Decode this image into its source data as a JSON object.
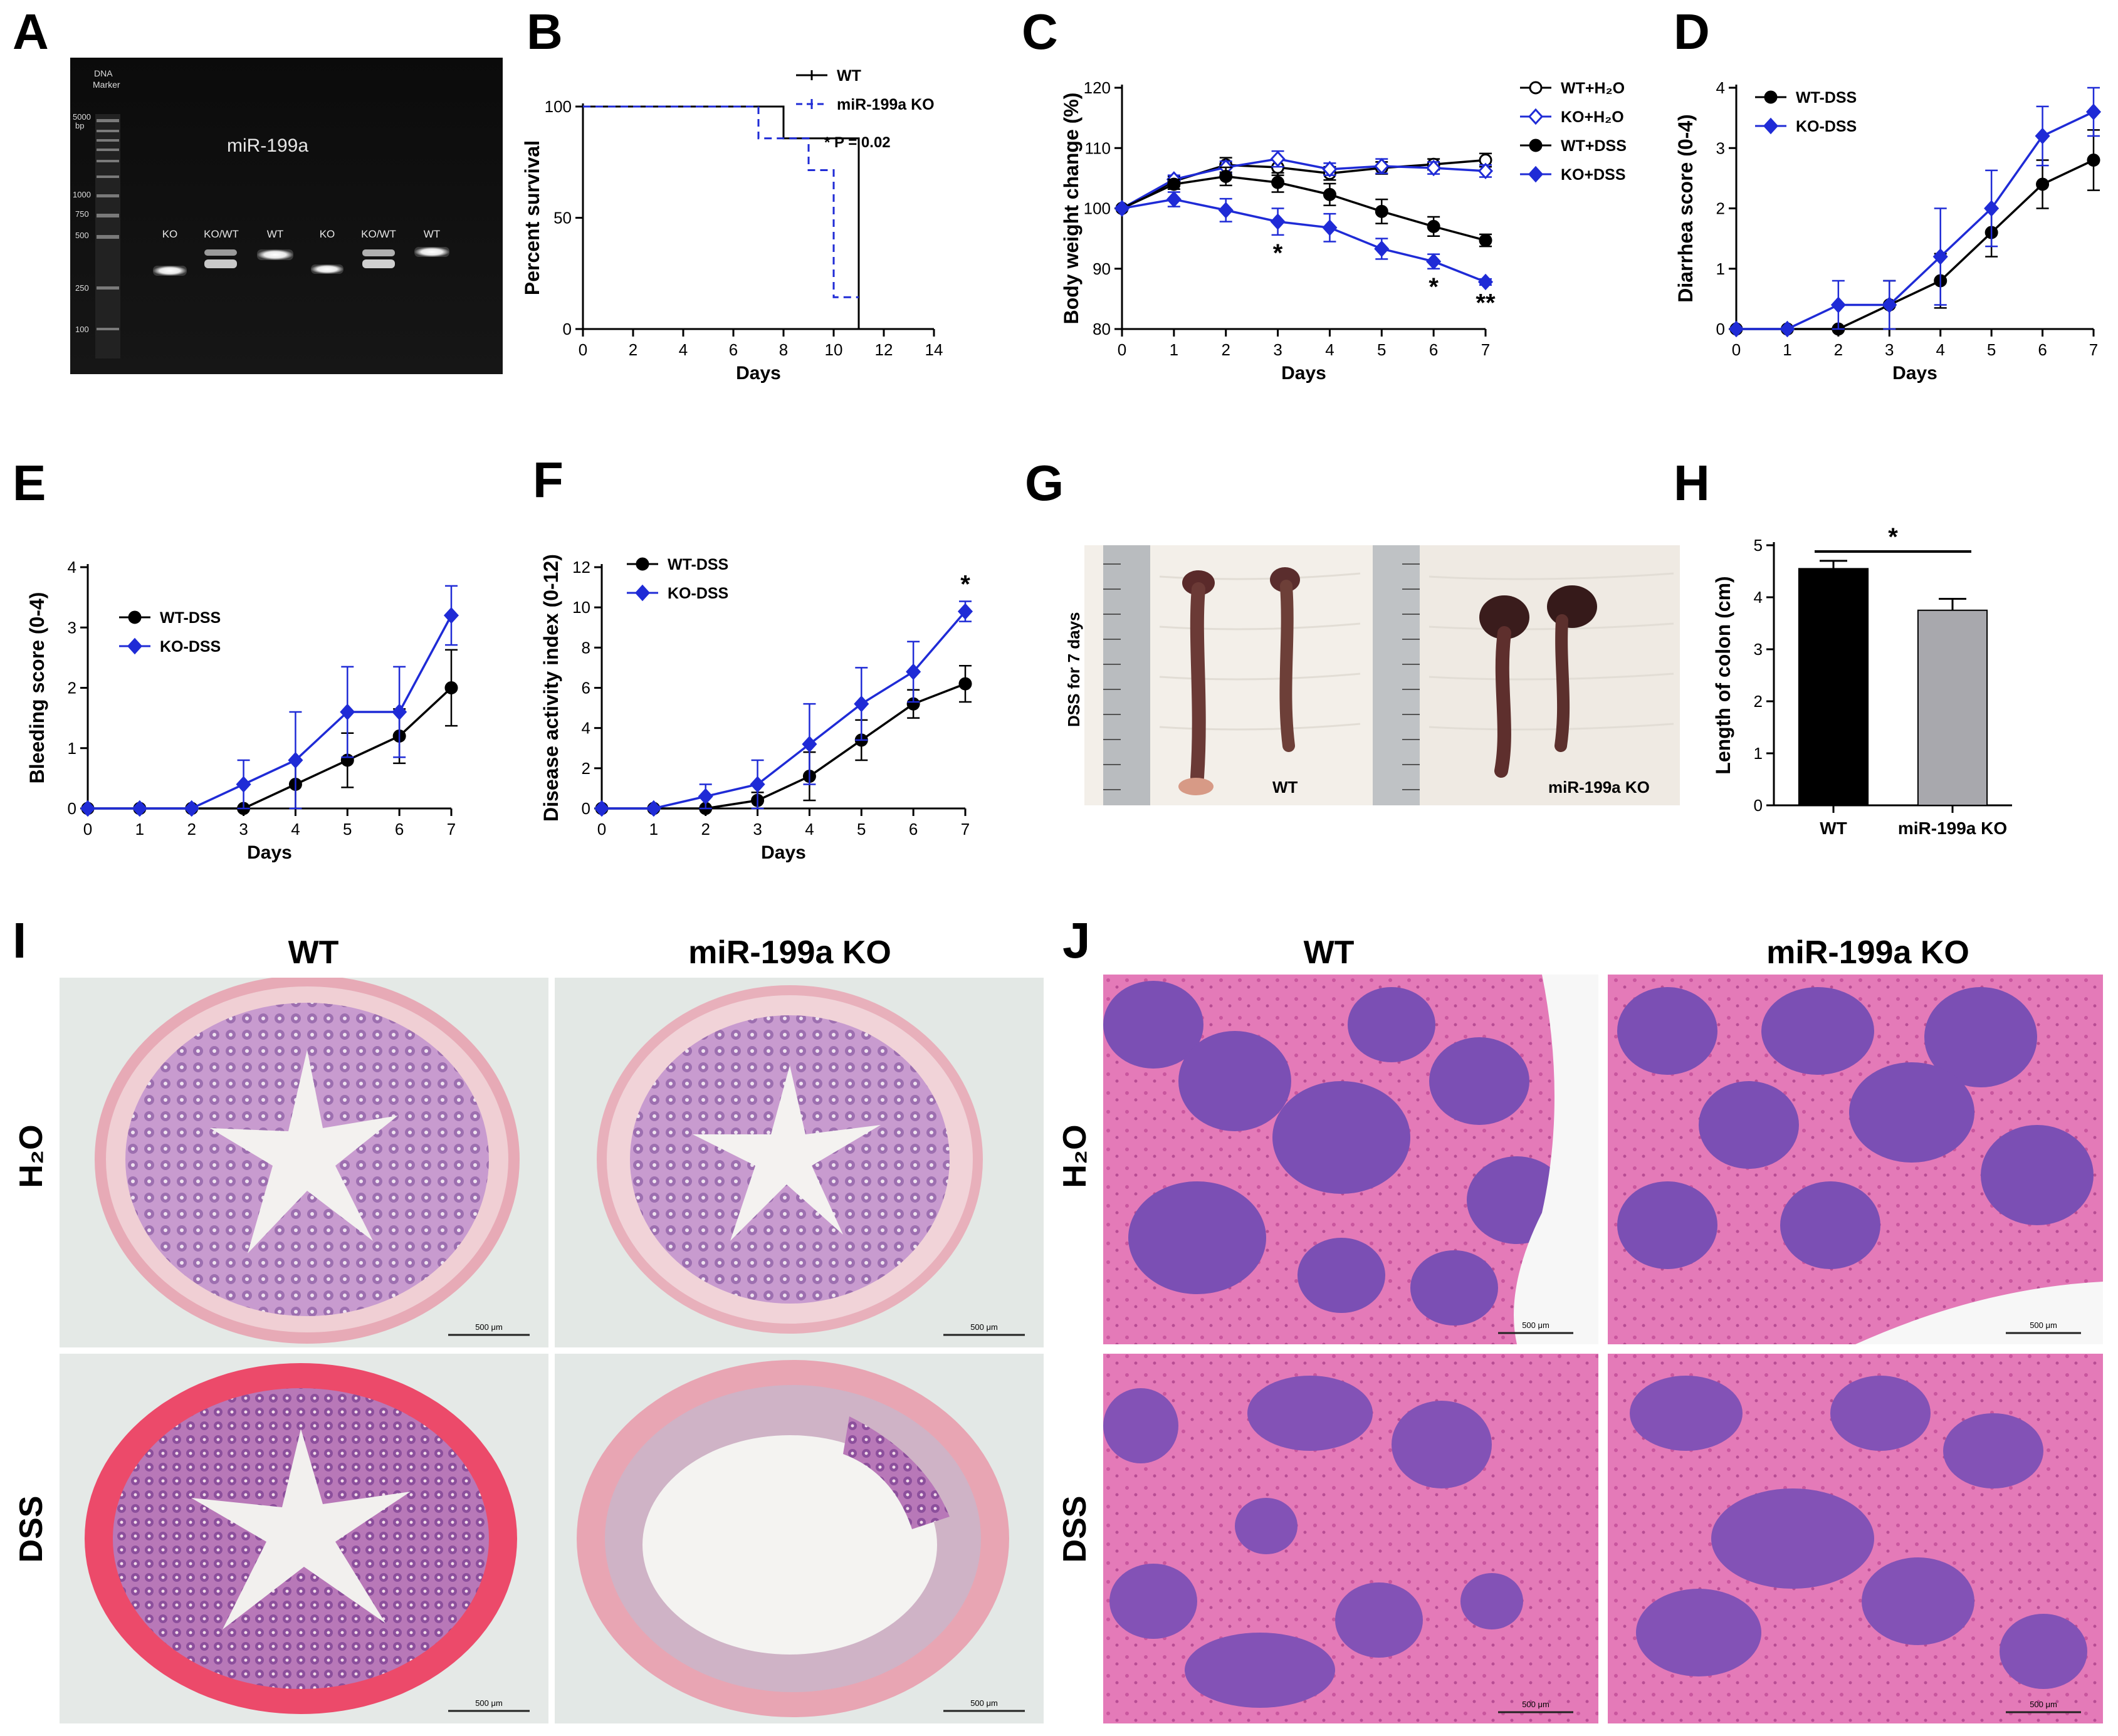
{
  "panel_letters": [
    "A",
    "B",
    "C",
    "D",
    "E",
    "F",
    "G",
    "H",
    "I",
    "J"
  ],
  "gel": {
    "ladder_title": [
      "DNA",
      "Marker"
    ],
    "ladder_labels": [
      "5000",
      "bp",
      "1000",
      "750",
      "500",
      "250",
      "100"
    ],
    "title": "miR-199a",
    "lanes": [
      "KO",
      "KO/WT",
      "WT",
      "KO",
      "KO/WT",
      "WT"
    ]
  },
  "photo_g": {
    "side_label": "DSS for 7 days",
    "wt_label": "WT",
    "ko_label": "miR-199a KO"
  },
  "histology_i": {
    "col_titles": [
      "WT",
      "miR-199a KO"
    ],
    "row_labels": [
      "H₂O",
      "DSS"
    ],
    "scale_text": "500 μm"
  },
  "histology_j": {
    "col_titles": [
      "WT",
      "miR-199a KO"
    ],
    "row_labels": [
      "H₂O",
      "DSS"
    ],
    "scale_text": "500 μm"
  },
  "colors": {
    "wt": "#000000",
    "ko": "#1f2bd6",
    "bar_wt": "#000000",
    "bar_ko": "#a8a8ad"
  },
  "chart_data": [
    {
      "id": "B",
      "type": "line",
      "xlabel": "Days",
      "ylabel": "Percent survival",
      "xlim": [
        0,
        14
      ],
      "ylim": [
        0,
        100
      ],
      "xticks": [
        0,
        2,
        4,
        6,
        8,
        10,
        12,
        14
      ],
      "yticks": [
        0,
        50,
        100
      ],
      "series": [
        {
          "name": "WT",
          "step": true,
          "x": [
            0,
            8,
            8,
            11,
            11
          ],
          "y": [
            100,
            100,
            85.7,
            85.7,
            0
          ]
        },
        {
          "name": "miR-199a KO",
          "step": true,
          "dashed": true,
          "x": [
            0,
            7,
            7,
            9,
            9,
            10,
            10,
            11
          ],
          "y": [
            100,
            100,
            85.7,
            85.7,
            71.4,
            71.4,
            14.3,
            14.3
          ]
        }
      ],
      "annotation": "*  P = 0.02"
    },
    {
      "id": "C",
      "type": "line",
      "xlabel": "Days",
      "ylabel": "Body weight change (%)",
      "xlim": [
        0,
        7
      ],
      "ylim": [
        80,
        120
      ],
      "xticks": [
        0,
        1,
        2,
        3,
        4,
        5,
        6,
        7
      ],
      "yticks": [
        80,
        90,
        100,
        110,
        120
      ],
      "series": [
        {
          "name": "WT+H₂O",
          "y": [
            100,
            104.5,
            107.2,
            106.8,
            105.8,
            106.7,
            107.3,
            108.0
          ],
          "err": [
            0.3,
            0.8,
            1.2,
            1.3,
            1.1,
            1.0,
            0.9,
            1.1
          ],
          "marker": "circle-open",
          "color": "#000000"
        },
        {
          "name": "KO+H₂O",
          "y": [
            100,
            104.8,
            106.8,
            108.2,
            106.5,
            107.0,
            106.7,
            106.2
          ],
          "err": [
            0.3,
            0.7,
            1.0,
            1.3,
            1.0,
            1.2,
            1.0,
            1.0
          ],
          "marker": "diamond-open",
          "color": "#1f2bd6"
        },
        {
          "name": "WT+DSS",
          "y": [
            100,
            104.0,
            105.3,
            104.3,
            102.3,
            99.5,
            97.0,
            94.7
          ],
          "err": [
            0.3,
            0.8,
            1.5,
            1.6,
            1.8,
            2.0,
            1.6,
            1.0
          ],
          "marker": "circle",
          "color": "#000000"
        },
        {
          "name": "KO+DSS",
          "y": [
            100,
            101.5,
            99.7,
            97.8,
            96.8,
            93.3,
            91.2,
            87.8
          ],
          "err": [
            0.3,
            1.2,
            1.9,
            2.2,
            2.3,
            1.7,
            1.2,
            0.5
          ],
          "marker": "diamond",
          "color": "#1f2bd6"
        }
      ],
      "annotations": [
        {
          "x": 3,
          "text": "*"
        },
        {
          "x": 6,
          "text": "*"
        },
        {
          "x": 7,
          "text": "**"
        }
      ]
    },
    {
      "id": "D",
      "type": "line",
      "xlabel": "Days",
      "ylabel": "Diarrhea score (0-4)",
      "xlim": [
        0,
        7
      ],
      "ylim": [
        0,
        4
      ],
      "xticks": [
        0,
        1,
        2,
        3,
        4,
        5,
        6,
        7
      ],
      "yticks": [
        0,
        1,
        2,
        3,
        4
      ],
      "series": [
        {
          "name": "WT-DSS",
          "y": [
            0,
            0,
            0,
            0.4,
            0.8,
            1.6,
            2.4,
            2.8
          ],
          "err": [
            0,
            0,
            0,
            0.4,
            0.45,
            0.4,
            0.4,
            0.5
          ],
          "marker": "circle",
          "color": "#000000"
        },
        {
          "name": "KO-DSS",
          "y": [
            0,
            0,
            0.4,
            0.4,
            1.2,
            2.0,
            3.2,
            3.6
          ],
          "err": [
            0,
            0,
            0.4,
            0.4,
            0.8,
            0.63,
            0.49,
            0.4
          ],
          "marker": "diamond",
          "color": "#1f2bd6"
        }
      ]
    },
    {
      "id": "E",
      "type": "line",
      "xlabel": "Days",
      "ylabel": "Bleeding score (0-4)",
      "xlim": [
        0,
        7
      ],
      "ylim": [
        0,
        4
      ],
      "xticks": [
        0,
        1,
        2,
        3,
        4,
        5,
        6,
        7
      ],
      "yticks": [
        0,
        1,
        2,
        3,
        4
      ],
      "series": [
        {
          "name": "WT-DSS",
          "y": [
            0,
            0,
            0,
            0,
            0.4,
            0.8,
            1.2,
            2.0
          ],
          "err": [
            0,
            0,
            0,
            0,
            0.4,
            0.45,
            0.45,
            0.63
          ],
          "marker": "circle",
          "color": "#000000"
        },
        {
          "name": "KO-DSS",
          "y": [
            0,
            0,
            0,
            0.4,
            0.8,
            1.6,
            1.6,
            3.2
          ],
          "err": [
            0,
            0,
            0,
            0.4,
            0.8,
            0.75,
            0.75,
            0.49
          ],
          "marker": "diamond",
          "color": "#1f2bd6"
        }
      ]
    },
    {
      "id": "F",
      "type": "line",
      "xlabel": "Days",
      "ylabel": "Disease activity index (0-12)",
      "xlim": [
        0,
        7
      ],
      "ylim": [
        0,
        12
      ],
      "xticks": [
        0,
        1,
        2,
        3,
        4,
        5,
        6,
        7
      ],
      "yticks": [
        0,
        2,
        4,
        6,
        8,
        10,
        12
      ],
      "series": [
        {
          "name": "WT-DSS",
          "y": [
            0,
            0,
            0,
            0.4,
            1.6,
            3.4,
            5.2,
            6.2
          ],
          "err": [
            0,
            0,
            0,
            0.4,
            1.2,
            1.0,
            0.7,
            0.9
          ],
          "marker": "circle",
          "color": "#000000"
        },
        {
          "name": "KO-DSS",
          "y": [
            0,
            0,
            0.6,
            1.2,
            3.2,
            5.2,
            6.8,
            9.8
          ],
          "err": [
            0,
            0,
            0.6,
            1.2,
            2.0,
            1.8,
            1.5,
            0.5
          ],
          "marker": "diamond",
          "color": "#1f2bd6"
        }
      ],
      "annotations": [
        {
          "x": 7,
          "text": "*"
        }
      ]
    },
    {
      "id": "H",
      "type": "bar",
      "xlabel": "",
      "ylabel": "Length of colon (cm)",
      "ylim": [
        0,
        5
      ],
      "yticks": [
        0,
        1,
        2,
        3,
        4,
        5
      ],
      "categories": [
        "WT",
        "miR-199a KO"
      ],
      "values": [
        4.55,
        3.75
      ],
      "err": [
        0.15,
        0.22
      ],
      "significance": "*"
    }
  ]
}
